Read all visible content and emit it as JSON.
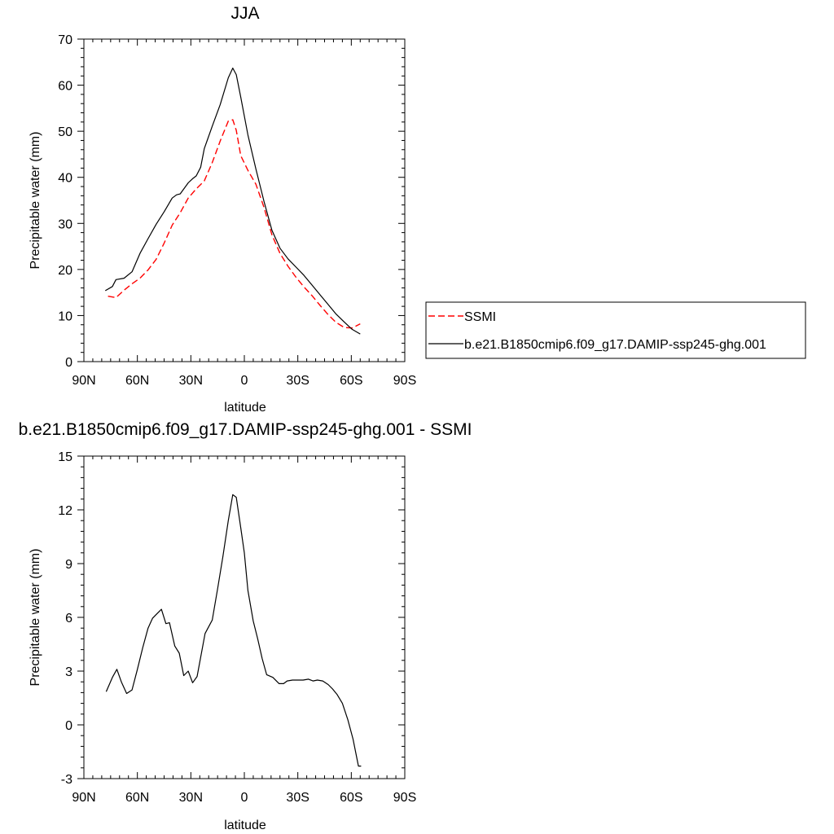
{
  "chart_data": [
    {
      "type": "line",
      "title": "JJA",
      "xlabel": "latitude",
      "ylabel": "Precipitable water (mm)",
      "xlim": [
        90,
        -90
      ],
      "ylim": [
        0,
        70
      ],
      "xticks": [
        {
          "value": 90,
          "label": "90N"
        },
        {
          "value": 60,
          "label": "60N"
        },
        {
          "value": 30,
          "label": "30N"
        },
        {
          "value": 0,
          "label": "0"
        },
        {
          "value": -30,
          "label": "30S"
        },
        {
          "value": -60,
          "label": "60S"
        },
        {
          "value": -90,
          "label": "90S"
        }
      ],
      "yticks": [
        {
          "value": 0,
          "label": "0"
        },
        {
          "value": 10,
          "label": "10"
        },
        {
          "value": 20,
          "label": "20"
        },
        {
          "value": 30,
          "label": "30"
        },
        {
          "value": 40,
          "label": "40"
        },
        {
          "value": 50,
          "label": "50"
        },
        {
          "value": 60,
          "label": "60"
        },
        {
          "value": 70,
          "label": "70"
        }
      ],
      "legend_position": "right",
      "series": [
        {
          "name": "SSMI",
          "color": "#ff0000",
          "dashed": true,
          "x": [
            76.5,
            72,
            67.5,
            63,
            58.5,
            54,
            49.5,
            45,
            40.5,
            36,
            31.5,
            27,
            22.5,
            18,
            13.5,
            9,
            6.5,
            4.5,
            2,
            -2,
            -6.5,
            -11,
            -15.5,
            -20,
            -24.5,
            -29,
            -33.5,
            -38,
            -42.5,
            -47,
            -51.5,
            -56,
            -60.5,
            -65
          ],
          "y": [
            14.2,
            13.9,
            15.5,
            16.9,
            18.1,
            19.9,
            22.2,
            25.7,
            29.6,
            32.3,
            35.5,
            37.5,
            39.2,
            43.2,
            47.9,
            52.2,
            52.5,
            50.2,
            44.7,
            41.5,
            38.5,
            33.5,
            27.5,
            23.5,
            20.7,
            18.3,
            16.2,
            14.3,
            12.2,
            10.2,
            8.5,
            7.4,
            7.3,
            8.2
          ]
        },
        {
          "name": "b.e21.B1850cmip6.f09_g17.DAMIP-ssp245-ghg.001",
          "color": "#000000",
          "dashed": false,
          "x": [
            78,
            74,
            72,
            67.5,
            63,
            58.5,
            54,
            49.5,
            45,
            40.5,
            38,
            36,
            31.5,
            29,
            27,
            24.5,
            22.5,
            18,
            13.5,
            9,
            6.5,
            4.5,
            2,
            -2,
            -6.5,
            -11,
            -15.5,
            -20,
            -24.5,
            -29,
            -33.5,
            -38,
            -42.5,
            -47,
            -51.5,
            -56,
            -60.5,
            -65
          ],
          "y": [
            15.4,
            16.3,
            17.8,
            18.1,
            19.5,
            23.5,
            26.7,
            29.8,
            32.5,
            35.5,
            36.2,
            36.4,
            38.8,
            39.7,
            40.3,
            42.2,
            46.2,
            51.1,
            55.8,
            61.6,
            63.7,
            62.3,
            57.4,
            49.2,
            41.8,
            34.8,
            28.5,
            24.6,
            22.3,
            20.5,
            18.7,
            16.6,
            14.5,
            12.4,
            10.3,
            8.6,
            7.0,
            6.0
          ]
        }
      ]
    },
    {
      "type": "line",
      "title": "b.e21.B1850cmip6.f09_g17.DAMIP-ssp245-ghg.001 - SSMI",
      "xlabel": "latitude",
      "ylabel": "Precipitable water (mm)",
      "xlim": [
        90,
        -90
      ],
      "ylim": [
        -3,
        15
      ],
      "xticks": [
        {
          "value": 90,
          "label": "90N"
        },
        {
          "value": 60,
          "label": "60N"
        },
        {
          "value": 30,
          "label": "30N"
        },
        {
          "value": 0,
          "label": "0"
        },
        {
          "value": -30,
          "label": "30S"
        },
        {
          "value": -60,
          "label": "60S"
        },
        {
          "value": -90,
          "label": "90S"
        }
      ],
      "yticks": [
        {
          "value": -3,
          "label": "-3"
        },
        {
          "value": 0,
          "label": "0"
        },
        {
          "value": 3,
          "label": "3"
        },
        {
          "value": 6,
          "label": "6"
        },
        {
          "value": 9,
          "label": "9"
        },
        {
          "value": 12,
          "label": "12"
        },
        {
          "value": 15,
          "label": "15"
        }
      ],
      "series": [
        {
          "color": "#000000",
          "dashed": false,
          "x": [
            77.5,
            74,
            71.5,
            69,
            66,
            63,
            60,
            57,
            54,
            51.5,
            49,
            46.5,
            44,
            42,
            39,
            36.5,
            34,
            31.5,
            29,
            26.5,
            22,
            18,
            15,
            12,
            9,
            6.5,
            4.5,
            2,
            0,
            -2,
            -5,
            -7.5,
            -10,
            -12.5,
            -16,
            -19.5,
            -22,
            -24,
            -27,
            -30,
            -33,
            -36,
            -38.5,
            -41,
            -44,
            -47,
            -49.5,
            -52,
            -55,
            -58,
            -61,
            -64,
            -65.5
          ],
          "y": [
            1.85,
            2.65,
            3.1,
            2.4,
            1.75,
            1.95,
            3.1,
            4.3,
            5.4,
            5.95,
            6.2,
            6.45,
            5.65,
            5.7,
            4.4,
            4.0,
            2.75,
            3.0,
            2.35,
            2.7,
            5.1,
            5.85,
            7.6,
            9.4,
            11.4,
            12.85,
            12.7,
            11.0,
            9.6,
            7.5,
            5.8,
            4.8,
            3.7,
            2.8,
            2.65,
            2.3,
            2.3,
            2.45,
            2.5,
            2.5,
            2.5,
            2.55,
            2.45,
            2.5,
            2.45,
            2.25,
            2.0,
            1.7,
            1.2,
            0.3,
            -0.8,
            -2.3,
            -2.3
          ]
        }
      ]
    }
  ]
}
